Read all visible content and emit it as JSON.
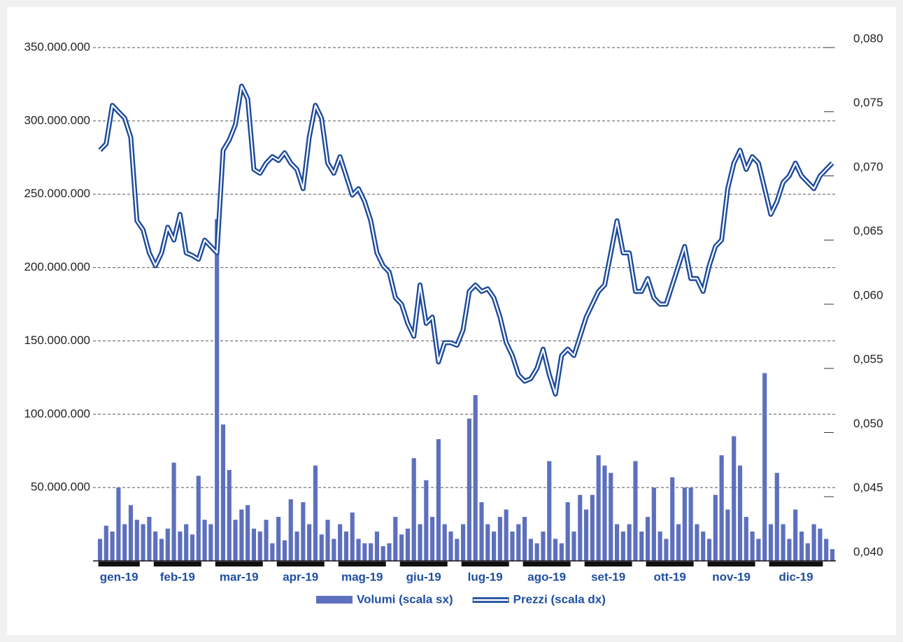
{
  "chart_data": {
    "type": "combo",
    "categories": [
      null,
      null,
      null,
      null,
      "gen-19",
      null,
      null,
      null,
      null,
      null,
      null,
      null,
      null,
      null,
      "feb-19",
      null,
      null,
      null,
      null,
      null,
      null,
      null,
      null,
      null,
      "mar-19",
      null,
      null,
      null,
      null,
      null,
      null,
      null,
      null,
      null,
      "apr-19",
      null,
      null,
      null,
      null,
      null,
      null,
      null,
      null,
      null,
      "mag-19",
      null,
      null,
      null,
      null,
      null,
      null,
      null,
      null,
      null,
      "giu-19",
      null,
      null,
      null,
      null,
      null,
      null,
      null,
      null,
      null,
      "lug-19",
      null,
      null,
      null,
      null,
      null,
      null,
      null,
      null,
      null,
      "ago-19",
      null,
      null,
      null,
      null,
      null,
      null,
      null,
      null,
      null,
      "set-19",
      null,
      null,
      null,
      null,
      null,
      null,
      null,
      null,
      null,
      "ott-19",
      null,
      null,
      null,
      null,
      null,
      null,
      null,
      null,
      null,
      "nov-19",
      null,
      null,
      null,
      null,
      null,
      null,
      null,
      null,
      null,
      "dic-19",
      null,
      null,
      null,
      null,
      null
    ],
    "series": [
      {
        "name": "Volumi (scala sx)",
        "type": "bar",
        "color": "#5d70bd",
        "values": [
          15000000,
          24000000,
          20000000,
          50000000,
          25000000,
          38000000,
          28000000,
          25000000,
          30000000,
          20000000,
          15000000,
          22000000,
          67000000,
          20000000,
          25000000,
          18000000,
          58000000,
          28000000,
          25000000,
          233000000,
          93000000,
          62000000,
          28000000,
          35000000,
          38000000,
          22000000,
          20000000,
          28000000,
          12000000,
          30000000,
          14000000,
          42000000,
          20000000,
          40000000,
          25000000,
          65000000,
          18000000,
          28000000,
          15000000,
          25000000,
          20000000,
          33000000,
          15000000,
          12000000,
          12000000,
          20000000,
          10000000,
          12000000,
          30000000,
          18000000,
          22000000,
          70000000,
          25000000,
          55000000,
          30000000,
          83000000,
          25000000,
          20000000,
          15000000,
          25000000,
          97000000,
          113000000,
          40000000,
          25000000,
          20000000,
          30000000,
          35000000,
          20000000,
          25000000,
          30000000,
          15000000,
          12000000,
          20000000,
          68000000,
          15000000,
          12000000,
          40000000,
          20000000,
          45000000,
          35000000,
          45000000,
          72000000,
          65000000,
          60000000,
          25000000,
          20000000,
          25000000,
          68000000,
          20000000,
          30000000,
          50000000,
          20000000,
          15000000,
          57000000,
          25000000,
          50000000,
          50000000,
          25000000,
          20000000,
          15000000,
          45000000,
          72000000,
          35000000,
          85000000,
          65000000,
          30000000,
          20000000,
          15000000,
          128000000,
          25000000,
          60000000,
          25000000,
          15000000,
          35000000,
          20000000,
          12000000,
          25000000,
          22000000,
          15000000,
          8000000
        ]
      },
      {
        "name": "Prezzi (scala dx)",
        "type": "line",
        "axis": "y2",
        "color": "#1c4a9c",
        "values": [
          0.072,
          0.0725,
          0.0755,
          0.075,
          0.0745,
          0.073,
          0.0665,
          0.0658,
          0.064,
          0.063,
          0.064,
          0.066,
          0.065,
          0.067,
          0.064,
          0.0638,
          0.0635,
          0.065,
          0.0645,
          0.064,
          0.072,
          0.0728,
          0.074,
          0.077,
          0.076,
          0.0705,
          0.0702,
          0.071,
          0.0715,
          0.0712,
          0.0718,
          0.071,
          0.0705,
          0.069,
          0.073,
          0.0755,
          0.0745,
          0.071,
          0.0702,
          0.0715,
          0.07,
          0.0685,
          0.069,
          0.068,
          0.0665,
          0.064,
          0.063,
          0.0625,
          0.0605,
          0.06,
          0.0585,
          0.0575,
          0.0615,
          0.0585,
          0.059,
          0.0555,
          0.057,
          0.057,
          0.0568,
          0.058,
          0.061,
          0.0615,
          0.061,
          0.0612,
          0.0605,
          0.059,
          0.057,
          0.056,
          0.0545,
          0.054,
          0.0542,
          0.055,
          0.0565,
          0.0545,
          0.053,
          0.056,
          0.0565,
          0.056,
          0.0575,
          0.059,
          0.06,
          0.061,
          0.0615,
          0.064,
          0.0665,
          0.064,
          0.064,
          0.061,
          0.061,
          0.062,
          0.0605,
          0.06,
          0.06,
          0.0615,
          0.063,
          0.0645,
          0.062,
          0.062,
          0.061,
          0.063,
          0.0645,
          0.065,
          0.069,
          0.071,
          0.072,
          0.0705,
          0.0715,
          0.071,
          0.069,
          0.067,
          0.068,
          0.0695,
          0.07,
          0.071,
          0.07,
          0.0695,
          0.069,
          0.07,
          0.0705,
          0.071
        ]
      }
    ],
    "ylim": [
      0,
      350000000
    ],
    "yticks": [
      {
        "value": 50000000,
        "label": "50.000.000"
      },
      {
        "value": 100000000,
        "label": "100.000.000"
      },
      {
        "value": 150000000,
        "label": "150.000.000"
      },
      {
        "value": 200000000,
        "label": "200.000.000"
      },
      {
        "value": 250000000,
        "label": "250.000.000"
      },
      {
        "value": 300000000,
        "label": "300.000.000"
      },
      {
        "value": 350000000,
        "label": "350.000.000"
      }
    ],
    "y2lim": [
      0.04,
      0.08
    ],
    "y2ticks": [
      {
        "value": 0.04,
        "label": "0,040"
      },
      {
        "value": 0.045,
        "label": "0,045"
      },
      {
        "value": 0.05,
        "label": "0,050"
      },
      {
        "value": 0.055,
        "label": "0,055"
      },
      {
        "value": 0.06,
        "label": "0,060"
      },
      {
        "value": 0.065,
        "label": "0,065"
      },
      {
        "value": 0.07,
        "label": "0,070"
      },
      {
        "value": 0.075,
        "label": "0,075"
      },
      {
        "value": 0.08,
        "label": "0,080"
      }
    ],
    "grid": true,
    "legend": "bottom"
  }
}
